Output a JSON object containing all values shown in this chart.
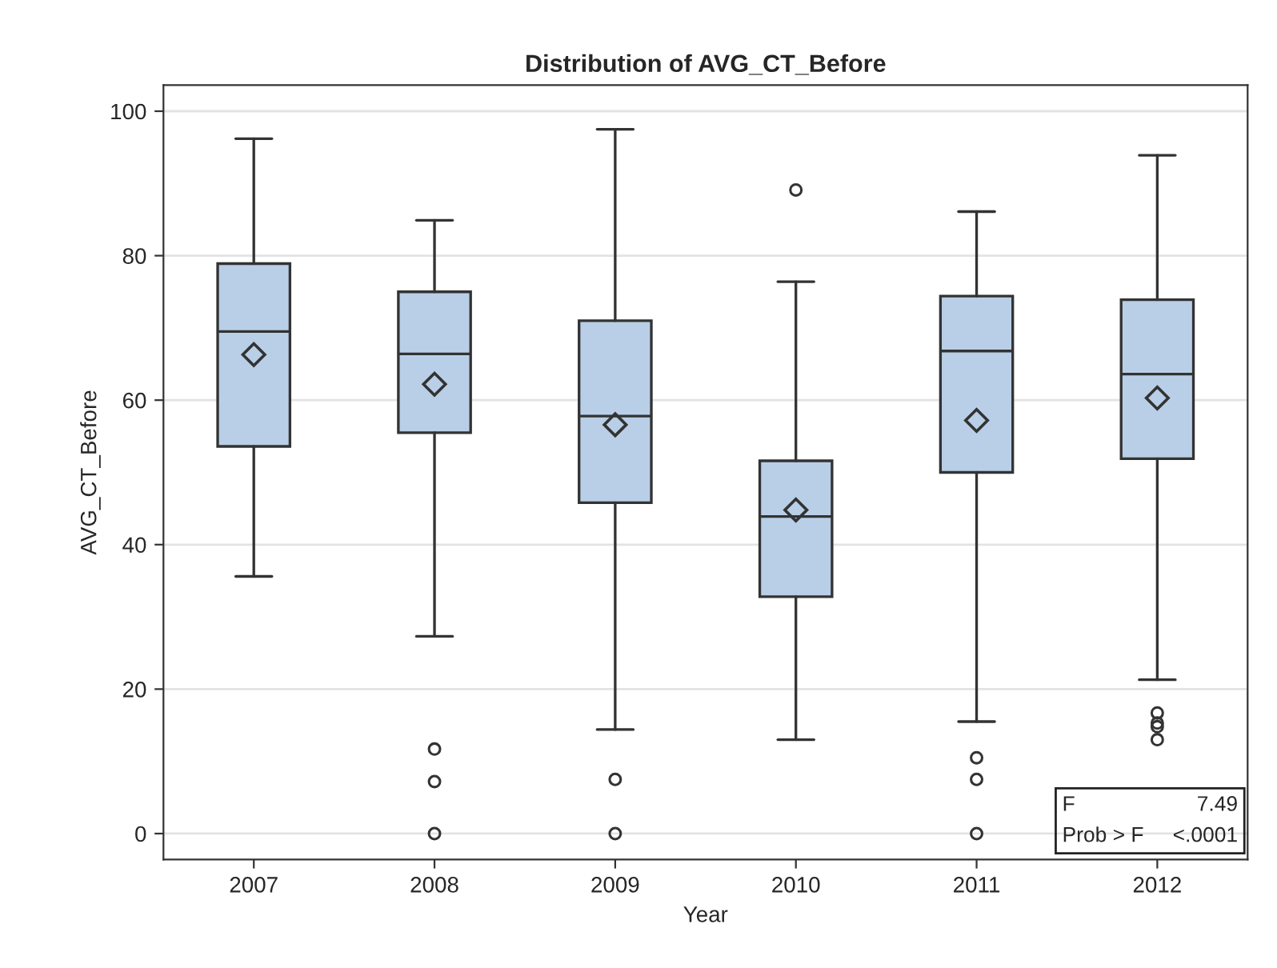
{
  "chart_data": {
    "type": "box",
    "title": "Distribution of AVG_CT_Before",
    "xlabel": "Year",
    "ylabel": "AVG_CT_Before",
    "categories": [
      "2007",
      "2008",
      "2009",
      "2010",
      "2011",
      "2012"
    ],
    "color": "#b9cfe7",
    "boxes": [
      {
        "low": 35.6,
        "q1": 53.6,
        "median": 69.5,
        "q3": 78.9,
        "high": 96.2,
        "mean": 66.3
      },
      {
        "low": 27.3,
        "q1": 55.5,
        "median": 66.4,
        "q3": 75.0,
        "high": 84.9,
        "mean": 62.2,
        "outliers": [
          11.7,
          7.2,
          0
        ]
      },
      {
        "low": 14.4,
        "q1": 45.8,
        "median": 57.8,
        "q3": 71.0,
        "high": 97.5,
        "mean": 56.6,
        "outliers": [
          7.5,
          0
        ]
      },
      {
        "low": 13.0,
        "q1": 32.8,
        "median": 43.9,
        "q3": 51.6,
        "high": 76.4,
        "mean": 44.8,
        "outliers": [
          89.1
        ]
      },
      {
        "low": 15.5,
        "q1": 50.0,
        "median": 66.8,
        "q3": 74.4,
        "high": 86.1,
        "mean": 57.2,
        "outliers": [
          10.5,
          7.5,
          0
        ]
      },
      {
        "low": 21.3,
        "q1": 51.9,
        "median": 63.6,
        "q3": 73.9,
        "high": 93.9,
        "mean": 60.3,
        "outliers": [
          16.7,
          15.3,
          14.8,
          13.0
        ]
      }
    ],
    "ylim": [
      -3.6,
      103.6
    ],
    "yticks": [
      0,
      20,
      40,
      60,
      80,
      100
    ],
    "grid": "y",
    "annotations": [
      [
        "F",
        "7.49"
      ],
      [
        "Prob > F",
        "<.0001"
      ]
    ]
  }
}
